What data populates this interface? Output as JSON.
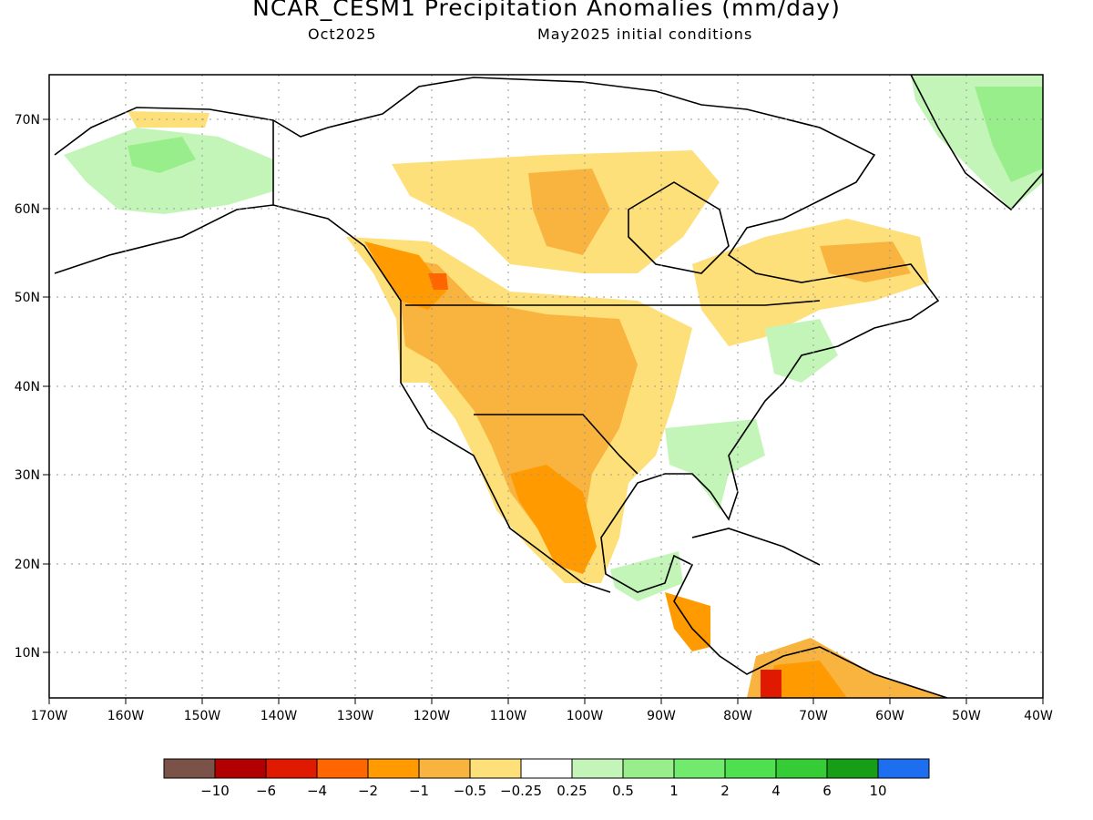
{
  "title": "NCAR_CESM1 Precipitation Anomalies (mm/day)",
  "subtitle_left": "Oct2025",
  "subtitle_right": "May2025 initial conditions",
  "lat_labels": [
    "10N",
    "20N",
    "30N",
    "40N",
    "50N",
    "60N",
    "70N"
  ],
  "lon_labels": [
    "170W",
    "160W",
    "150W",
    "140W",
    "130W",
    "120W",
    "110W",
    "100W",
    "90W",
    "80W",
    "70W",
    "60W",
    "50W",
    "40W"
  ],
  "colorbar": {
    "colors": [
      "#7a5248",
      "#b20000",
      "#e01a00",
      "#ff6600",
      "#ff9a00",
      "#f9b440",
      "#fde07a",
      "#ffffff",
      "#c4f5b8",
      "#98ee8a",
      "#72ea6e",
      "#4fe04f",
      "#36cc36",
      "#169f16",
      "#1e6ff0"
    ],
    "labels": [
      "−10",
      "−6",
      "−4",
      "−2",
      "−1",
      "−0.5",
      "−0.25",
      "0.25",
      "0.5",
      "1",
      "2",
      "4",
      "6",
      "10"
    ]
  }
}
